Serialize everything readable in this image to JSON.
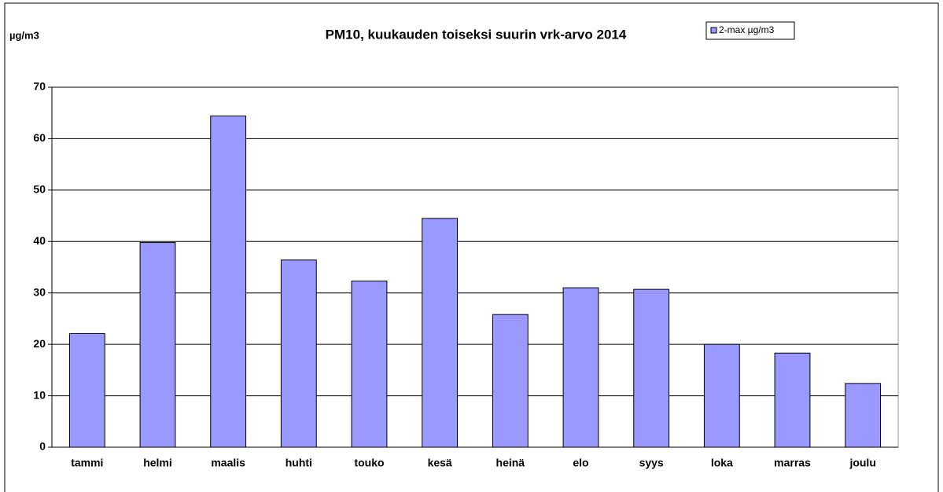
{
  "chart_data": {
    "type": "bar",
    "title": "PM10, kuukauden toiseksi suurin vrk-arvo 2014",
    "y_label": "µg/m3",
    "categories": [
      "tammi",
      "helmi",
      "maalis",
      "huhti",
      "touko",
      "kesä",
      "heinä",
      "elo",
      "syys",
      "loka",
      "marras",
      "joulu"
    ],
    "series": [
      {
        "name": "2-max µg/m3",
        "color": "#9999ff",
        "values": [
          22.1,
          39.8,
          64.4,
          36.4,
          32.3,
          44.5,
          25.8,
          31.0,
          30.7,
          20.0,
          18.3,
          12.4
        ]
      }
    ],
    "ylim": [
      0,
      70
    ],
    "yticks": [
      0,
      10,
      20,
      30,
      40,
      50,
      60,
      70
    ],
    "grid": true,
    "legend": "top-right"
  }
}
